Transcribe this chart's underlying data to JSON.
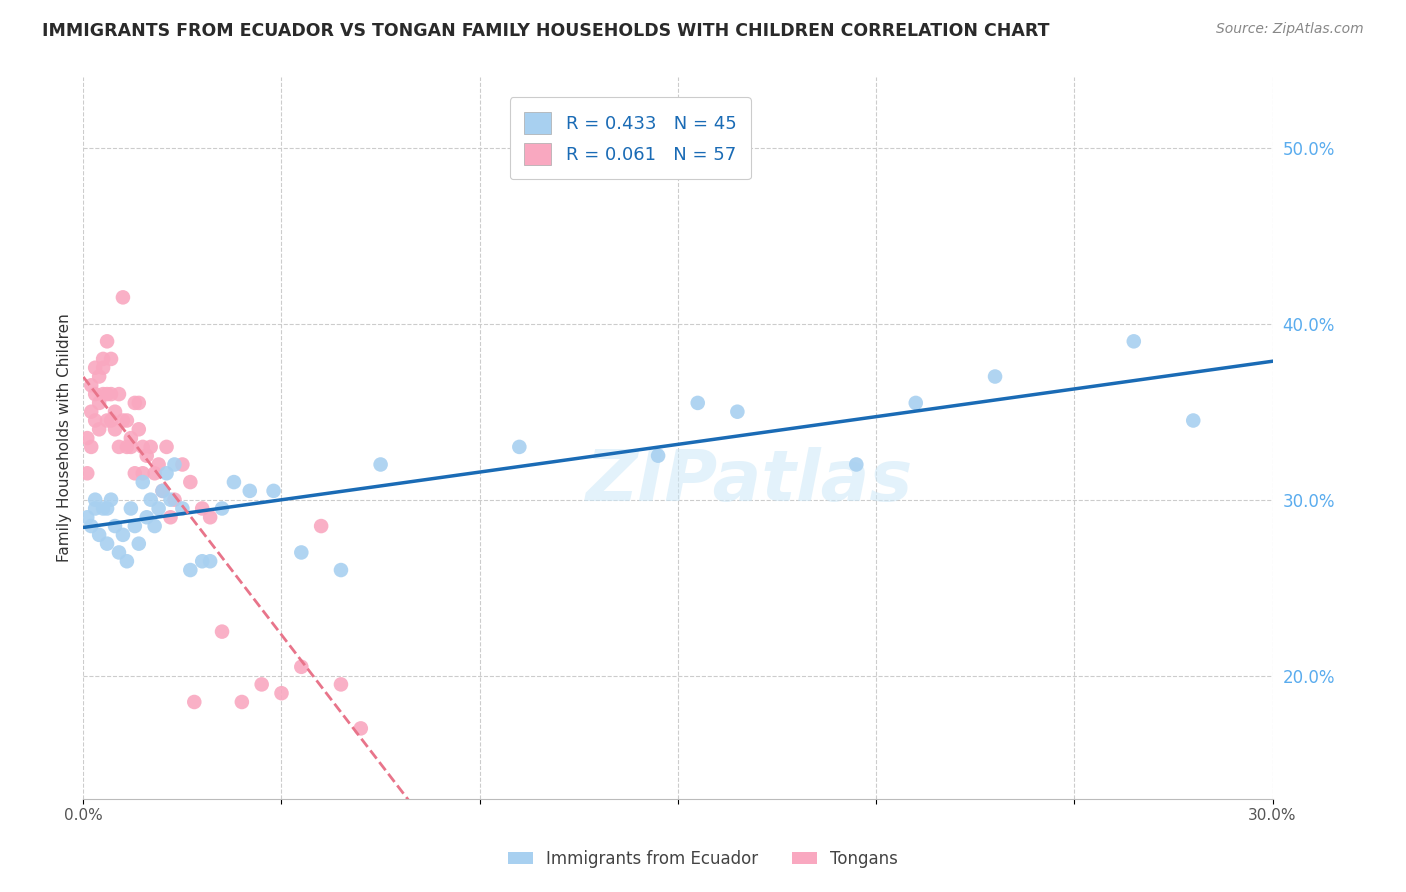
{
  "title": "IMMIGRANTS FROM ECUADOR VS TONGAN FAMILY HOUSEHOLDS WITH CHILDREN CORRELATION CHART",
  "source": "Source: ZipAtlas.com",
  "ylabel": "Family Households with Children",
  "xlim": [
    0.0,
    0.3
  ],
  "ylim": [
    0.13,
    0.54
  ],
  "xticks": [
    0.0,
    0.05,
    0.1,
    0.15,
    0.2,
    0.25,
    0.3
  ],
  "yticks_right": [
    0.2,
    0.3,
    0.4,
    0.5
  ],
  "ytick_labels_right": [
    "20.0%",
    "30.0%",
    "40.0%",
    "50.0%"
  ],
  "xtick_labels": [
    "0.0%",
    "",
    "",
    "",
    "",
    "",
    "30.0%"
  ],
  "blue_R": 0.433,
  "blue_N": 45,
  "pink_R": 0.061,
  "pink_N": 57,
  "blue_color": "#a8d0f0",
  "pink_color": "#f9a8c0",
  "blue_line_color": "#1a6bb5",
  "pink_line_color": "#e8748a",
  "watermark": "ZIPatlas",
  "blue_scatter_x": [
    0.001,
    0.002,
    0.003,
    0.003,
    0.004,
    0.005,
    0.006,
    0.006,
    0.007,
    0.008,
    0.009,
    0.01,
    0.011,
    0.012,
    0.013,
    0.014,
    0.015,
    0.016,
    0.017,
    0.018,
    0.019,
    0.02,
    0.021,
    0.022,
    0.023,
    0.025,
    0.027,
    0.03,
    0.032,
    0.035,
    0.038,
    0.042,
    0.048,
    0.055,
    0.065,
    0.075,
    0.11,
    0.145,
    0.155,
    0.165,
    0.195,
    0.21,
    0.23,
    0.265,
    0.28
  ],
  "blue_scatter_y": [
    0.29,
    0.285,
    0.295,
    0.3,
    0.28,
    0.295,
    0.275,
    0.295,
    0.3,
    0.285,
    0.27,
    0.28,
    0.265,
    0.295,
    0.285,
    0.275,
    0.31,
    0.29,
    0.3,
    0.285,
    0.295,
    0.305,
    0.315,
    0.3,
    0.32,
    0.295,
    0.26,
    0.265,
    0.265,
    0.295,
    0.31,
    0.305,
    0.305,
    0.27,
    0.26,
    0.32,
    0.33,
    0.325,
    0.355,
    0.35,
    0.32,
    0.355,
    0.37,
    0.39,
    0.345
  ],
  "pink_scatter_x": [
    0.001,
    0.001,
    0.002,
    0.002,
    0.002,
    0.003,
    0.003,
    0.003,
    0.004,
    0.004,
    0.004,
    0.005,
    0.005,
    0.005,
    0.006,
    0.006,
    0.006,
    0.007,
    0.007,
    0.007,
    0.008,
    0.008,
    0.009,
    0.009,
    0.01,
    0.01,
    0.011,
    0.011,
    0.012,
    0.012,
    0.013,
    0.013,
    0.014,
    0.014,
    0.015,
    0.015,
    0.016,
    0.017,
    0.018,
    0.019,
    0.02,
    0.021,
    0.022,
    0.023,
    0.025,
    0.027,
    0.028,
    0.03,
    0.032,
    0.035,
    0.04,
    0.045,
    0.05,
    0.055,
    0.06,
    0.065,
    0.07
  ],
  "pink_scatter_y": [
    0.335,
    0.315,
    0.35,
    0.33,
    0.365,
    0.345,
    0.375,
    0.36,
    0.34,
    0.355,
    0.37,
    0.375,
    0.36,
    0.38,
    0.36,
    0.345,
    0.39,
    0.36,
    0.345,
    0.38,
    0.35,
    0.34,
    0.36,
    0.33,
    0.345,
    0.415,
    0.33,
    0.345,
    0.33,
    0.335,
    0.355,
    0.315,
    0.34,
    0.355,
    0.315,
    0.33,
    0.325,
    0.33,
    0.315,
    0.32,
    0.305,
    0.33,
    0.29,
    0.3,
    0.32,
    0.31,
    0.185,
    0.295,
    0.29,
    0.225,
    0.185,
    0.195,
    0.19,
    0.205,
    0.285,
    0.195,
    0.17
  ],
  "legend_labels": [
    "Immigrants from Ecuador",
    "Tongans"
  ]
}
